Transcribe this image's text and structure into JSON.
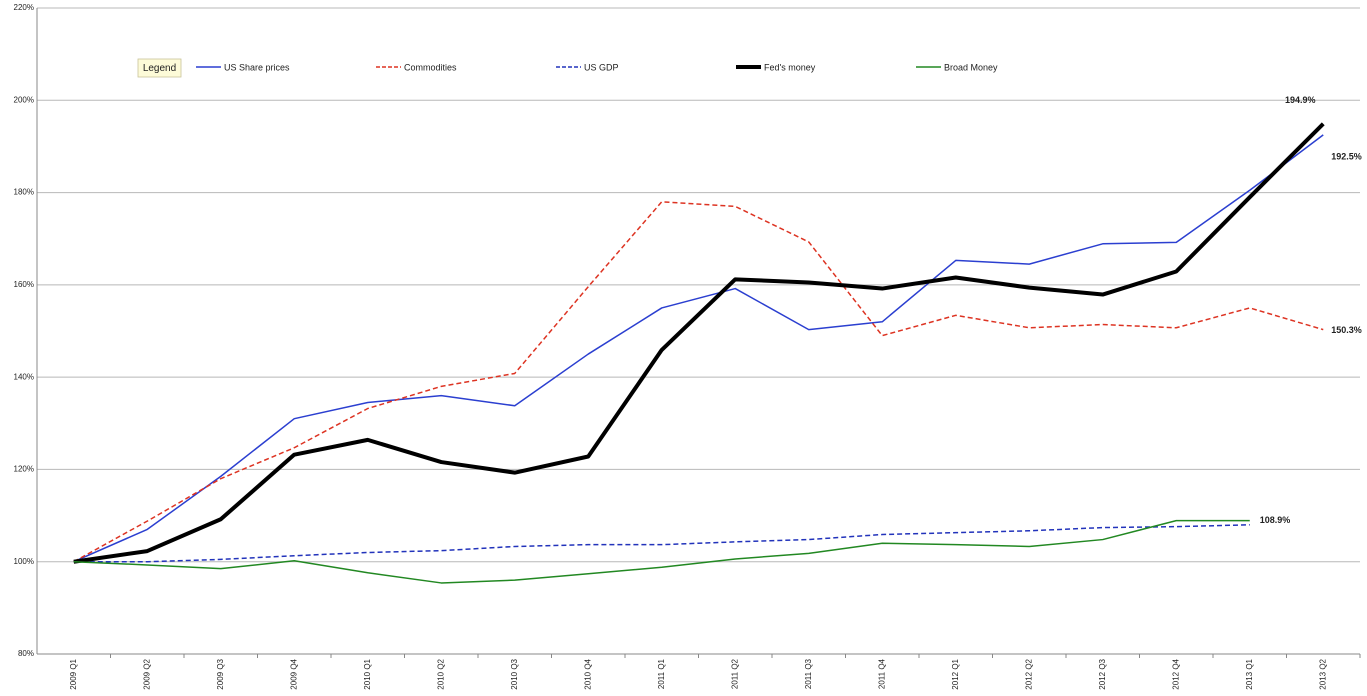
{
  "chart_data": {
    "type": "line",
    "legend_title": "Legend",
    "legend_position": "top",
    "grid": true,
    "categories": [
      "2009 Q1",
      "2009 Q2",
      "2009 Q3",
      "2009 Q4",
      "2010 Q1",
      "2010 Q2",
      "2010 Q3",
      "2010 Q4",
      "2011 Q1",
      "2011 Q2",
      "2011 Q3",
      "2011 Q4",
      "2012 Q1",
      "2012 Q2",
      "2012 Q3",
      "2012 Q4",
      "2013 Q1",
      "2013 Q2"
    ],
    "ylim": [
      80,
      220
    ],
    "yticks": [
      {
        "value": 80,
        "label": "80%"
      },
      {
        "value": 100,
        "label": "100%"
      },
      {
        "value": 120,
        "label": "120%"
      },
      {
        "value": 140,
        "label": "140%"
      },
      {
        "value": 160,
        "label": "160%"
      },
      {
        "value": 180,
        "label": "180%"
      },
      {
        "value": 200,
        "label": "200%"
      },
      {
        "value": 220,
        "label": "220%"
      }
    ],
    "series": [
      {
        "name": "US Share prices",
        "color": "#2b3fd0",
        "dashed": false,
        "line_width": 1.5,
        "values": [
          100,
          107,
          118.5,
          131,
          134.5,
          136,
          133.8,
          145,
          155,
          159.2,
          150.3,
          152,
          165.3,
          164.5,
          168.9,
          169.2,
          180.5,
          192.5
        ]
      },
      {
        "name": "Commodities",
        "color": "#dd3322",
        "dashed": true,
        "line_width": 1.5,
        "values": [
          100,
          108.8,
          118,
          124.7,
          133.2,
          138,
          140.8,
          159.6,
          178,
          177,
          169.3,
          149,
          153.4,
          150.7,
          151.4,
          150.7,
          155,
          150.3
        ]
      },
      {
        "name": "US GDP",
        "color": "#2233bb",
        "dashed": true,
        "line_width": 1.5,
        "values": [
          100,
          100,
          100.5,
          101.3,
          102,
          102.4,
          103.3,
          103.7,
          103.7,
          104.3,
          104.8,
          105.9,
          106.3,
          106.7,
          107.4,
          107.6,
          108,
          null
        ]
      },
      {
        "name": "Fed's money",
        "color": "#000000",
        "dashed": false,
        "line_width": 4,
        "values": [
          100,
          102.3,
          109.2,
          123.2,
          126.4,
          121.6,
          119.3,
          122.8,
          145.9,
          161.2,
          160.5,
          159.2,
          161.6,
          159.4,
          157.9,
          162.9,
          179,
          194.9
        ]
      },
      {
        "name": "Broad Money",
        "color": "#228822",
        "dashed": false,
        "line_width": 1.5,
        "values": [
          100,
          99.3,
          98.5,
          100.2,
          97.6,
          95.4,
          96,
          97.4,
          98.8,
          100.6,
          101.8,
          104,
          103.7,
          103.3,
          104.8,
          108.9,
          108.9,
          null
        ]
      }
    ],
    "annotations": [
      {
        "text": "194.9%",
        "x": "2013 Q2",
        "y": 194.9
      },
      {
        "text": "192.5%",
        "x": "2013 Q2",
        "y": 192.5
      },
      {
        "text": "150.3%",
        "x": "2013 Q2",
        "y": 150.3
      },
      {
        "text": "108.9%",
        "x": "2013 Q1",
        "y": 108.9
      }
    ]
  }
}
